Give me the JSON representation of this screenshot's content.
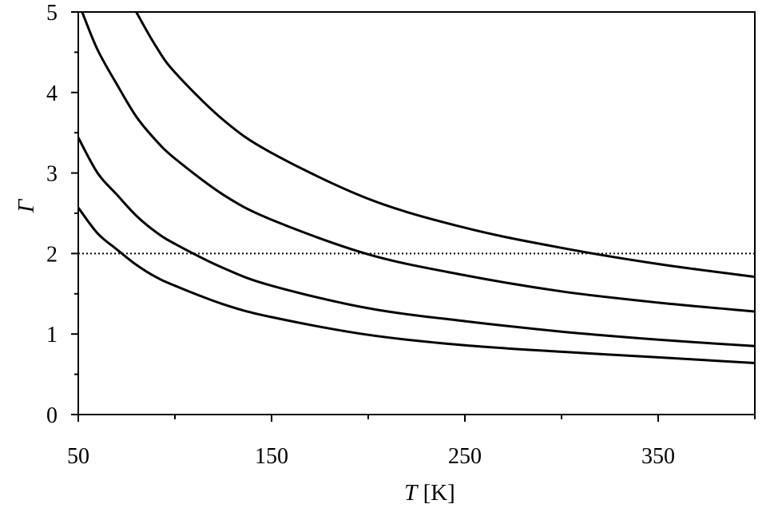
{
  "chart_data": {
    "type": "line",
    "xlabel": {
      "var": "T",
      "unit": " [K]"
    },
    "ylabel": "Γ",
    "xlim": [
      50,
      400
    ],
    "ylim": [
      0,
      5
    ],
    "x_major_ticks": [
      50,
      150,
      250,
      350
    ],
    "x_minor_ticks": [
      100,
      200,
      300,
      400
    ],
    "y_major_ticks": [
      0,
      1,
      2,
      3,
      4,
      5
    ],
    "y_minor_ticks": [
      0.5,
      1.5,
      2.5,
      3.5,
      4.5
    ],
    "grid": false,
    "series": [
      {
        "x": [
          50,
          60,
          70,
          80,
          90,
          100,
          125,
          150,
          200,
          250,
          300,
          350,
          400
        ],
        "values": [
          2.57,
          2.25,
          2.05,
          1.86,
          1.71,
          1.6,
          1.37,
          1.21,
          0.99,
          0.86,
          0.78,
          0.71,
          0.64
        ]
      },
      {
        "x": [
          50,
          60,
          70,
          80,
          90,
          100,
          125,
          150,
          200,
          250,
          300,
          350,
          400
        ],
        "values": [
          3.44,
          3.0,
          2.73,
          2.47,
          2.27,
          2.12,
          1.82,
          1.6,
          1.32,
          1.16,
          1.03,
          0.93,
          0.85
        ]
      },
      {
        "x": [
          52,
          60,
          70,
          80,
          90,
          100,
          125,
          150,
          200,
          250,
          300,
          350,
          400
        ],
        "values": [
          5.0,
          4.53,
          4.1,
          3.7,
          3.41,
          3.18,
          2.73,
          2.42,
          1.99,
          1.73,
          1.53,
          1.39,
          1.28
        ]
      },
      {
        "x": [
          80,
          90,
          100,
          125,
          150,
          200,
          250,
          300,
          350,
          400
        ],
        "values": [
          5.0,
          4.58,
          4.25,
          3.66,
          3.25,
          2.68,
          2.32,
          2.07,
          1.87,
          1.71
        ]
      }
    ],
    "reference_line": {
      "y": 2,
      "style": "dotted"
    }
  }
}
